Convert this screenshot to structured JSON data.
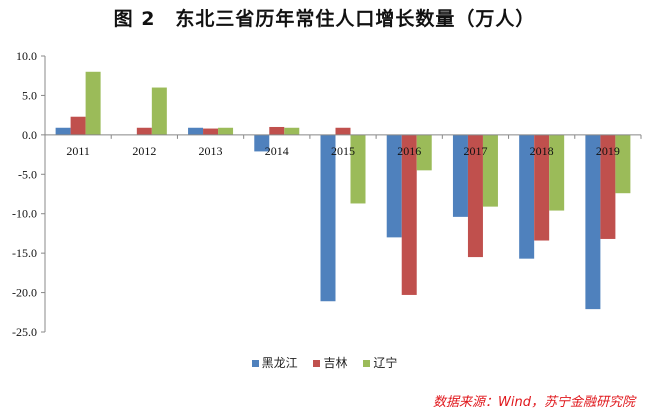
{
  "chart_data": {
    "type": "bar",
    "title": "图 2　东北三省历年常住人口增长数量（万人）",
    "categories": [
      "2011",
      "2012",
      "2013",
      "2014",
      "2015",
      "2016",
      "2017",
      "2018",
      "2019"
    ],
    "series": [
      {
        "name": "黑龙江",
        "color": "#4f81bd",
        "values": [
          0.9,
          0.0,
          0.9,
          -2.1,
          -21.1,
          -13.0,
          -10.4,
          -15.7,
          -22.1
        ]
      },
      {
        "name": "吉林",
        "color": "#c0504d",
        "values": [
          2.3,
          0.9,
          0.8,
          1.0,
          0.9,
          -20.3,
          -15.5,
          -13.4,
          -13.2
        ]
      },
      {
        "name": "辽宁",
        "color": "#9bbb59",
        "values": [
          8.0,
          6.0,
          0.9,
          0.9,
          -8.7,
          -4.5,
          -9.1,
          -9.6,
          -7.4
        ]
      }
    ],
    "ylim": [
      -25,
      10
    ],
    "yticks": [
      "10.0",
      "5.0",
      "0.0",
      "-5.0",
      "-10.0",
      "-15.0",
      "-20.0",
      "-25.0"
    ],
    "grid": false,
    "legend": "bottom",
    "source": "数据来源：Wind，苏宁金融研究院"
  }
}
